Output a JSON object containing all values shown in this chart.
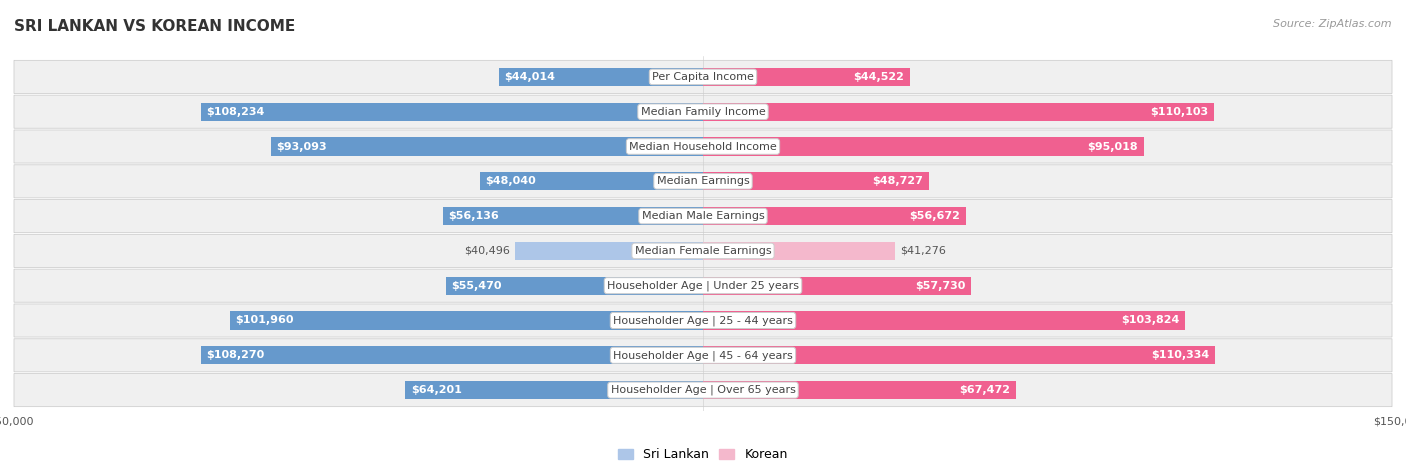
{
  "title": "SRI LANKAN VS KOREAN INCOME",
  "source": "Source: ZipAtlas.com",
  "categories": [
    "Per Capita Income",
    "Median Family Income",
    "Median Household Income",
    "Median Earnings",
    "Median Male Earnings",
    "Median Female Earnings",
    "Householder Age | Under 25 years",
    "Householder Age | 25 - 44 years",
    "Householder Age | 45 - 64 years",
    "Householder Age | Over 65 years"
  ],
  "sri_lankan": [
    44014,
    108234,
    93093,
    48040,
    56136,
    40496,
    55470,
    101960,
    108270,
    64201
  ],
  "korean": [
    44522,
    110103,
    95018,
    48727,
    56672,
    41276,
    57730,
    103824,
    110334,
    67472
  ],
  "sri_lankan_labels": [
    "$44,014",
    "$108,234",
    "$93,093",
    "$48,040",
    "$56,136",
    "$40,496",
    "$55,470",
    "$101,960",
    "$108,270",
    "$64,201"
  ],
  "korean_labels": [
    "$44,522",
    "$110,103",
    "$95,018",
    "$48,727",
    "$56,672",
    "$41,276",
    "$57,730",
    "$103,824",
    "$110,334",
    "$67,472"
  ],
  "max_val": 150000,
  "blue_light": "#adc6e8",
  "blue_dark": "#6699cc",
  "pink_light": "#f4b8cc",
  "pink_dark": "#f06090",
  "row_bg": "#f0f0f0",
  "title_fontsize": 11,
  "source_fontsize": 8,
  "bar_label_fontsize": 8,
  "category_fontsize": 8,
  "axis_label_fontsize": 8,
  "inside_label_threshold": 0.28
}
